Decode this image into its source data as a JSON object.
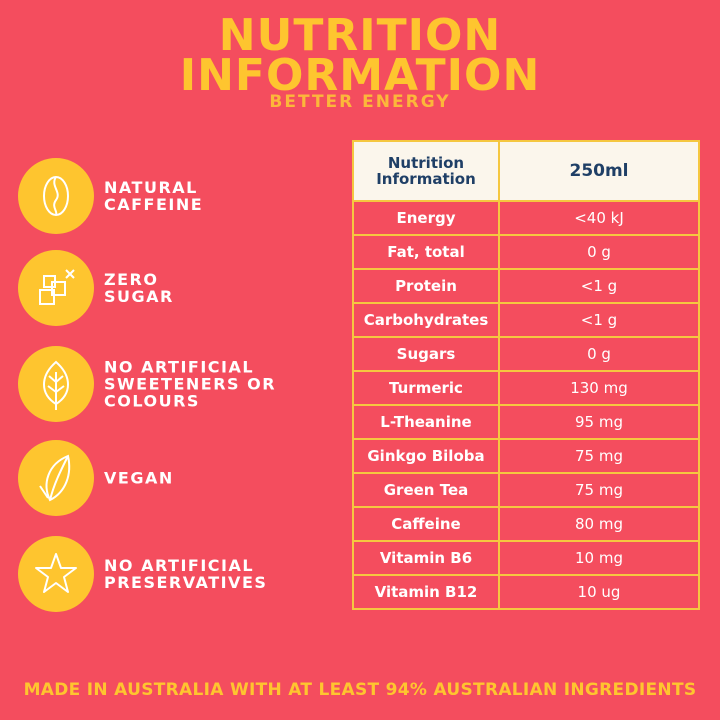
{
  "header": {
    "title_line1": "NUTRITION",
    "title_line2": "INFORMATION",
    "subtitle": "BETTER ENERGY"
  },
  "features": [
    {
      "icon": "coffee-bean-icon",
      "line1": "NATURAL",
      "line2": "CAFFEINE",
      "line3": ""
    },
    {
      "icon": "sugar-cubes-icon",
      "line1": "ZERO",
      "line2": "SUGAR",
      "line3": ""
    },
    {
      "icon": "leaf-icon",
      "line1": "NO ARTIFICIAL",
      "line2": "SWEETENERS OR",
      "line3": "COLOURS"
    },
    {
      "icon": "vegan-leaf-icon",
      "line1": "VEGAN",
      "line2": "",
      "line3": ""
    },
    {
      "icon": "star-icon",
      "line1": "NO ARTIFICIAL",
      "line2": "PRESERVATIVES",
      "line3": ""
    }
  ],
  "table": {
    "header_line1": "Nutrition",
    "header_line2": "Information",
    "header_value": "250ml",
    "rows": [
      {
        "name": "Energy",
        "value": "<40 kJ"
      },
      {
        "name": "Fat, total",
        "value": "0 g"
      },
      {
        "name": "Protein",
        "value": "<1 g"
      },
      {
        "name": "Carbohydrates",
        "value": "<1 g"
      },
      {
        "name": "Sugars",
        "value": "0 g"
      },
      {
        "name": "Turmeric",
        "value": "130 mg"
      },
      {
        "name": "L-Theanine",
        "value": "95 mg"
      },
      {
        "name": "Ginkgo Biloba",
        "value": "75 mg"
      },
      {
        "name": "Green Tea",
        "value": "75 mg"
      },
      {
        "name": "Caffeine",
        "value": "80 mg"
      },
      {
        "name": "Vitamin B6",
        "value": "10 mg"
      },
      {
        "name": "Vitamin B12",
        "value": "10 ug"
      }
    ]
  },
  "footer": "MADE IN AUSTRALIA WITH AT LEAST 94% AUSTRALIAN INGREDIENTS",
  "colors": {
    "background": "#f44d5e",
    "accent": "#fec52f",
    "table_header_bg": "#fbf6ec",
    "table_header_text": "#1f3f66"
  }
}
